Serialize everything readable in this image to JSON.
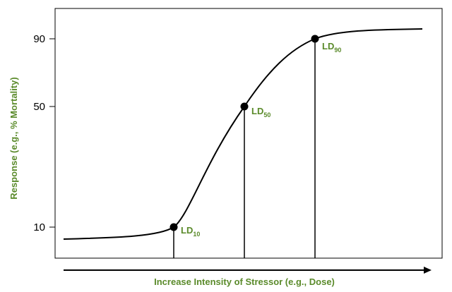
{
  "chart_data": {
    "type": "line",
    "title": "",
    "xlabel": "Increase Intensity of Stressor (e.g., Dose)",
    "ylabel": "Response (e.g., % Mortality)",
    "y_ticks": [
      {
        "value": 10,
        "label": "10"
      },
      {
        "value": 50,
        "label": "50"
      },
      {
        "value": 90,
        "label": "90"
      }
    ],
    "grid": false,
    "x_axis_has_numeric_ticks": false,
    "series": [
      {
        "type": "sigmoid",
        "description_points_y": [
          3,
          4,
          10,
          30,
          50,
          70,
          90,
          93
        ]
      }
    ],
    "annotations": [
      {
        "prefix": "LD",
        "sub": "10",
        "y": 10
      },
      {
        "prefix": "LD",
        "sub": "50",
        "y": 50
      },
      {
        "prefix": "LD",
        "sub": "90",
        "y": 90
      }
    ],
    "colors": {
      "label_green": "#5a8a2a",
      "line": "#000000"
    }
  }
}
